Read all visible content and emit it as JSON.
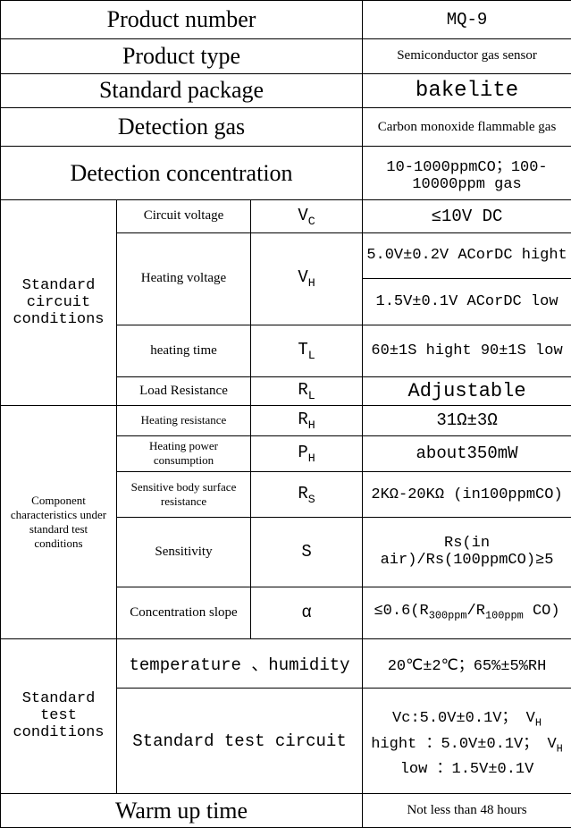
{
  "rows": {
    "product_number": {
      "label": "Product number",
      "value": "MQ-9"
    },
    "product_type": {
      "label": "Product type",
      "value": "Semiconductor gas sensor"
    },
    "standard_package": {
      "label": "Standard package",
      "value": "bakelite"
    },
    "detection_gas": {
      "label": "Detection gas",
      "value": "Carbon monoxide flammable gas"
    },
    "detection_concentration": {
      "label": "Detection concentration",
      "value": "10-1000ppmCO；100-10000ppm gas"
    }
  },
  "standard_circuit": {
    "label": "Standard circuit conditions",
    "circuit_voltage": {
      "label": "Circuit voltage",
      "symbol_html": "V<sub>C</sub>",
      "value": "≤10V  DC"
    },
    "heating_voltage": {
      "label": "Heating voltage",
      "symbol_html": "V<sub>H</sub>",
      "value1": "5.0V±0.2V ACorDC hight",
      "value2": "1.5V±0.1V ACorDC low"
    },
    "heating_time": {
      "label": "heating time",
      "symbol_html": "T<sub>L</sub>",
      "value": "60±1S hight 90±1S low"
    },
    "load_resistance": {
      "label": "Load Resistance",
      "symbol_html": "R<sub>L</sub>",
      "value": "Adjustable"
    }
  },
  "component": {
    "label": "Component characteristics under standard test conditions",
    "heating_resistance": {
      "label": "Heating resistance",
      "symbol_html": "R<sub>H</sub>",
      "value": "31Ω±3Ω"
    },
    "heating_power": {
      "label": "Heating power consumption",
      "symbol_html": "P<sub>H</sub>",
      "value": "about350mW"
    },
    "sensitive_body": {
      "label": "Sensitive body surface resistance",
      "symbol_html": "R<sub>S</sub>",
      "value": "2KΩ-20KΩ (in100ppmCO)"
    },
    "sensitivity": {
      "label": "Sensitivity",
      "symbol": "S",
      "value": "Rs(in air)/Rs(100ppmCO)≥5"
    },
    "concentration_slope": {
      "label": "Concentration slope",
      "symbol": "α",
      "value_html": "≤0.6(R<sub>300ppm</sub>/R<sub>100ppm</sub> CO)"
    }
  },
  "standard_test": {
    "label": "Standard test conditions",
    "temp_humidity": {
      "label": "temperature 、humidity",
      "value": "20℃±2℃；65%±5%RH"
    },
    "test_circuit": {
      "label": "Standard test circuit",
      "value_html": "Vc:5.0V±0.1V； V<sub>H</sub> hight ：5.0V±0.1V； V<sub>H</sub>  low ：1.5V±0.1V"
    }
  },
  "warm_up": {
    "label": "Warm up time",
    "value": "Not less than 48 hours"
  },
  "colwidths": {
    "c1": 130,
    "c2": 150,
    "c3": 125,
    "c4": 234
  }
}
